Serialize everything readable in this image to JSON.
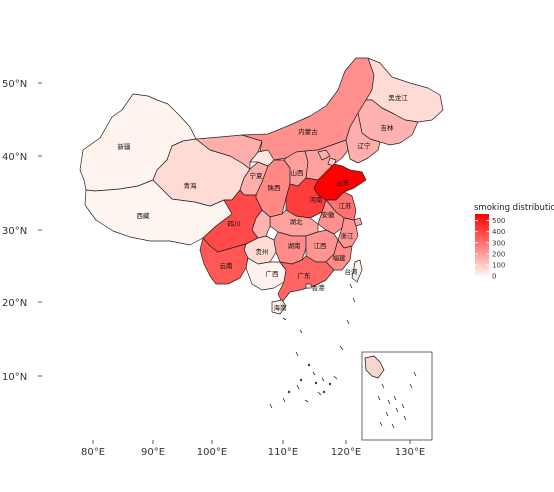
{
  "chart_data": {
    "type": "choropleth",
    "title": "",
    "legend": {
      "title": "smoking distribution",
      "position": "right",
      "ticks": [
        0,
        100,
        200,
        300,
        400,
        500
      ],
      "min": 0,
      "max": 560,
      "color_low": "#fff5f0",
      "color_high": "#ff0000"
    },
    "x_axis": {
      "ticks": [
        "80°E",
        "90°E",
        "100°E",
        "110°E",
        "120°E",
        "130°E"
      ]
    },
    "y_axis": {
      "ticks": [
        "50°N",
        "40°N",
        "30°N",
        "20°N",
        "10°N"
      ]
    },
    "regions": [
      {
        "id": "xinjiang",
        "name": "新疆",
        "value": 5
      },
      {
        "id": "xizang",
        "name": "西藏",
        "value": 0
      },
      {
        "id": "qinghai",
        "name": "青海",
        "value": 60
      },
      {
        "id": "gansu",
        "name": "",
        "value": 160
      },
      {
        "id": "neimenggu",
        "name": "内蒙古",
        "value": 230
      },
      {
        "id": "heilongjiang",
        "name": "黑龙江",
        "value": 60
      },
      {
        "id": "jilin",
        "name": "吉林",
        "value": 150
      },
      {
        "id": "liaoning",
        "name": "辽宁",
        "value": 160
      },
      {
        "id": "ningxia",
        "name": "宁夏",
        "value": 30
      },
      {
        "id": "shanxi",
        "name": "山西",
        "value": 200
      },
      {
        "id": "shaanxi",
        "name": "陕西",
        "value": 250
      },
      {
        "id": "hebei",
        "name": "",
        "value": 190
      },
      {
        "id": "beijing",
        "name": "",
        "value": 170
      },
      {
        "id": "tianjin",
        "name": "",
        "value": 90
      },
      {
        "id": "shandong",
        "name": "山东",
        "value": 560
      },
      {
        "id": "henan",
        "name": "河南",
        "value": 420
      },
      {
        "id": "jiangsu",
        "name": "江苏",
        "value": 300
      },
      {
        "id": "anhui",
        "name": "安徽",
        "value": 230
      },
      {
        "id": "shanghai",
        "name": "",
        "value": 170
      },
      {
        "id": "zhejiang",
        "name": "浙江",
        "value": 220
      },
      {
        "id": "hubei",
        "name": "湖北",
        "value": 190
      },
      {
        "id": "sichuan",
        "name": "四川",
        "value": 390
      },
      {
        "id": "chongqing",
        "name": "",
        "value": 150
      },
      {
        "id": "guizhou",
        "name": "贵州",
        "value": 60
      },
      {
        "id": "yunnan",
        "name": "云南",
        "value": 360
      },
      {
        "id": "hunan",
        "name": "湖南",
        "value": 240
      },
      {
        "id": "jiangxi",
        "name": "江西",
        "value": 220
      },
      {
        "id": "fujian",
        "name": "福建",
        "value": 240
      },
      {
        "id": "guangxi",
        "name": "广西",
        "value": 10
      },
      {
        "id": "guangdong",
        "name": "广东",
        "value": 330
      },
      {
        "id": "hainan",
        "name": "海南",
        "value": 20
      },
      {
        "id": "taiwan",
        "name": "台湾",
        "value": 5
      },
      {
        "id": "hongkong",
        "name": "香港",
        "value": 5
      }
    ]
  }
}
